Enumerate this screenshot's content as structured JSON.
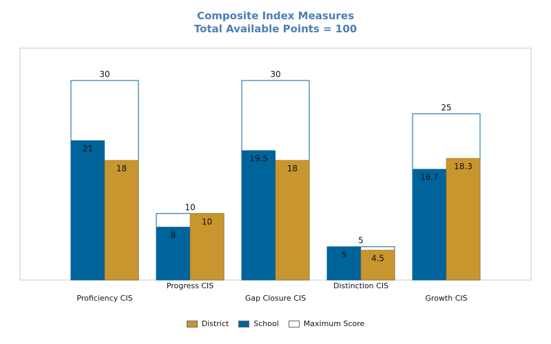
{
  "chart_data": {
    "type": "bar",
    "title": "Composite Index Measures",
    "subtitle": "Total Available Points = 100",
    "categories": [
      "Proficiency CIS",
      "Progress CIS",
      "Gap Closure CIS",
      "Distinction CIS",
      "Growth CIS"
    ],
    "series": [
      {
        "name": "School",
        "values": [
          21,
          8,
          19.5,
          5,
          16.7
        ],
        "color": "#00639a"
      },
      {
        "name": "District",
        "values": [
          18,
          10,
          18,
          4.5,
          18.3
        ],
        "color": "#c8962f"
      },
      {
        "name": "Maximum Score",
        "values": [
          30,
          10,
          30,
          5,
          25
        ],
        "color": "#ffffff"
      }
    ],
    "legend_order": [
      "District",
      "School",
      "Maximum Score"
    ],
    "legend_placement": "bottom",
    "ylim": [
      0,
      30
    ],
    "grid": false
  }
}
